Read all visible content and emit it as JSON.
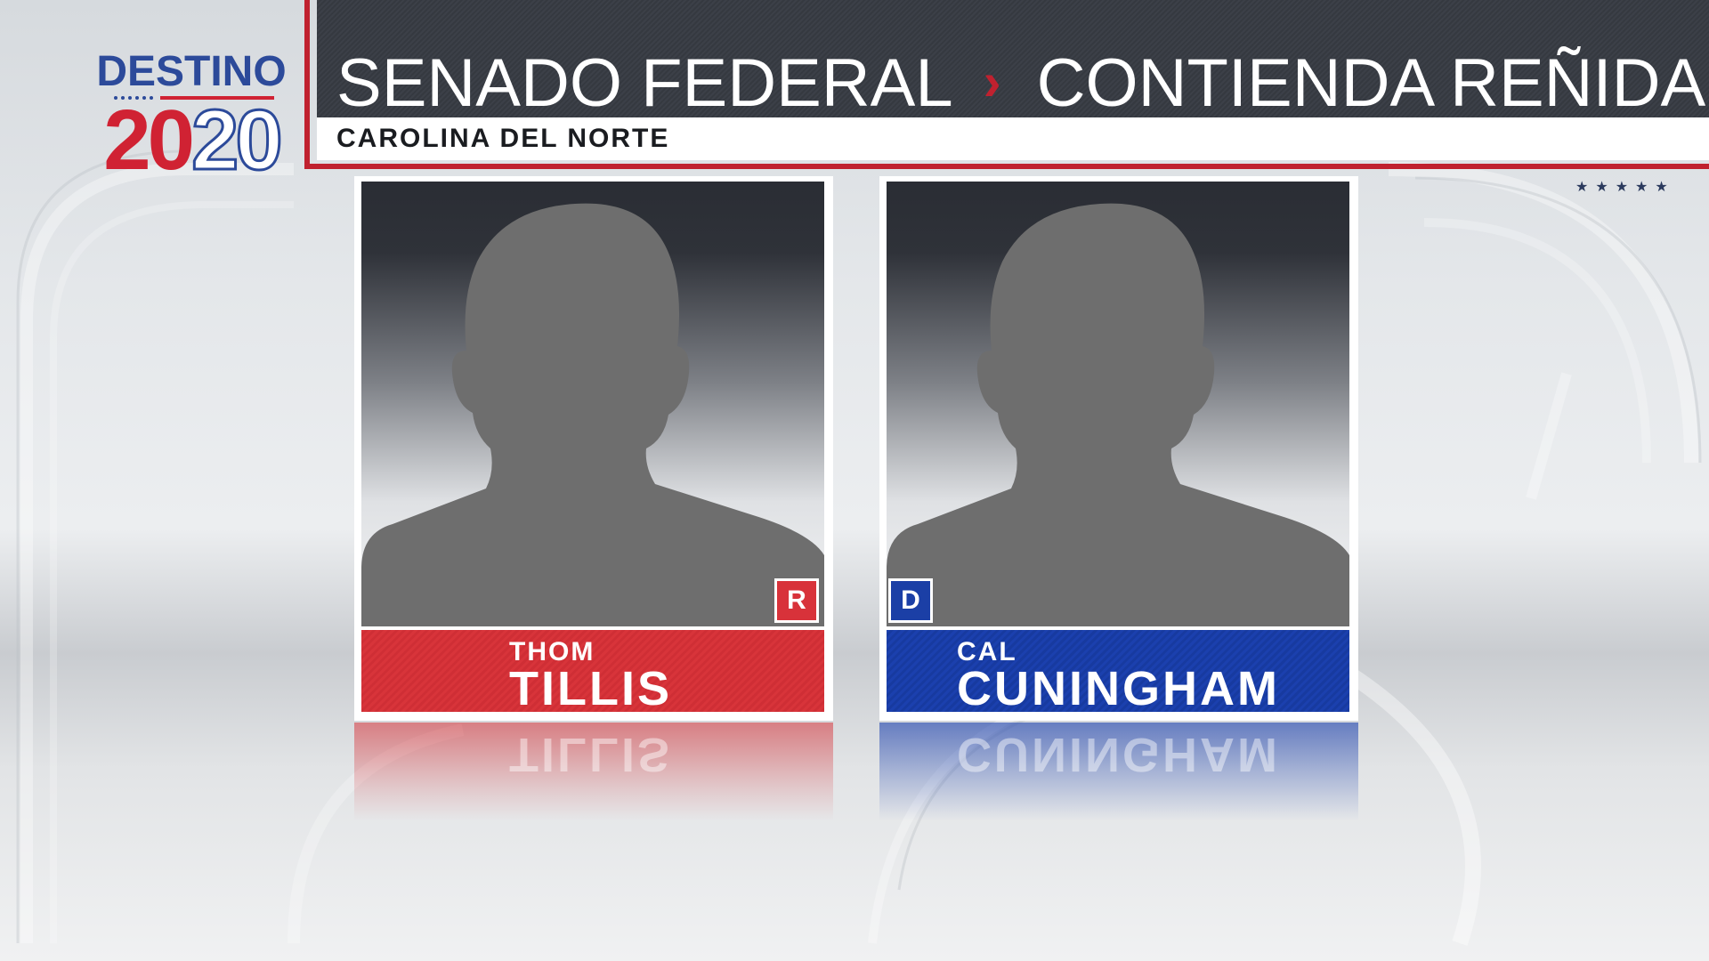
{
  "logo": {
    "word": "DESTINO",
    "year_red": "20",
    "year_outline": "20"
  },
  "header": {
    "title_left": "SENADO FEDERAL",
    "separator": "›",
    "title_right": "CONTIENDA REÑIDA",
    "subtitle": "CAROLINA DEL NORTE",
    "stars": "★★★★★"
  },
  "candidates": [
    {
      "first_name": "THOM",
      "last_name": "TILLIS",
      "party": "R",
      "party_color": "#d8343a"
    },
    {
      "first_name": "CAL",
      "last_name": "CUNINGHAM",
      "party": "D",
      "party_color": "#1b40ae"
    }
  ],
  "colors": {
    "accent_red": "#c0212f",
    "header_dark": "#3a3e46",
    "logo_blue": "#2c4a9a"
  }
}
